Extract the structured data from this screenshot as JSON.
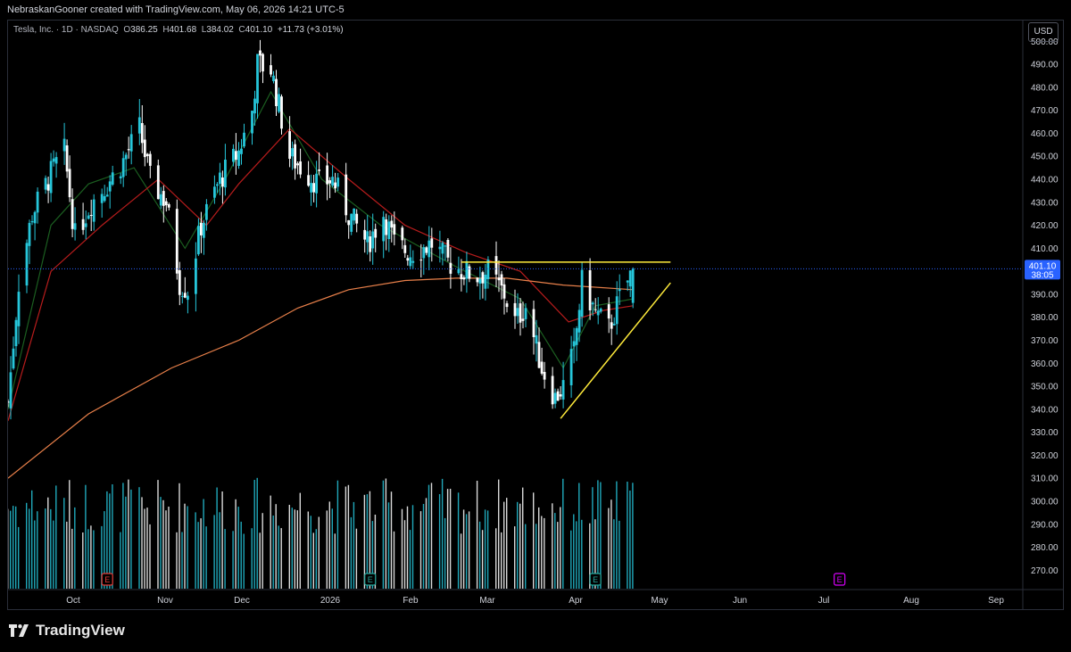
{
  "header": {
    "credit": "NebraskanGooner created with TradingView.com, May 06, 2026 14:21 UTC-5"
  },
  "legend": {
    "symbol": "Tesla, Inc. · 1D · NASDAQ",
    "open_label": "O",
    "open": "386.25",
    "high_label": "H",
    "high": "401.68",
    "low_label": "L",
    "low": "384.02",
    "close_label": "C",
    "close": "401.10",
    "change": "+11.73 (+3.01%)"
  },
  "currency": "USD",
  "price_tag": {
    "price": "401.10",
    "countdown": "38:05"
  },
  "footer": {
    "brand": "TradingView"
  },
  "colors": {
    "up": "#26c6da",
    "down": "#ffffff",
    "ma_fast": "#1b5e20",
    "ma_mid": "#b71c1c",
    "ma_slow": "#e9804a",
    "trendline": "#ffeb3b",
    "price_line": "#2962ff"
  },
  "chart_data": {
    "type": "candlestick",
    "symbol": "Tesla, Inc.",
    "interval": "1D",
    "exchange": "NASDAQ",
    "currency": "USD",
    "y_axis": {
      "ticks": [
        500,
        490,
        480,
        470,
        460,
        450,
        440,
        430,
        420,
        410,
        400,
        390,
        380,
        370,
        360,
        350,
        340,
        330,
        320,
        310,
        300,
        290,
        280,
        270
      ],
      "range": [
        262,
        504
      ]
    },
    "x_axis": {
      "ticks": [
        "Oct",
        "Nov",
        "Dec",
        "2026",
        "Feb",
        "Mar",
        "Apr",
        "May",
        "Jun",
        "Jul",
        "Aug",
        "Sep"
      ]
    },
    "close_path": [
      {
        "date": "2025-09-15",
        "close": 343
      },
      {
        "date": "2025-09-19",
        "close": 395
      },
      {
        "date": "2025-09-24",
        "close": 425
      },
      {
        "date": "2025-10-02",
        "close": 445
      },
      {
        "date": "2025-10-06",
        "close": 452
      },
      {
        "date": "2025-10-10",
        "close": 415
      },
      {
        "date": "2025-10-16",
        "close": 430
      },
      {
        "date": "2025-10-22",
        "close": 438
      },
      {
        "date": "2025-10-28",
        "close": 448
      },
      {
        "date": "2025-11-03",
        "close": 462
      },
      {
        "date": "2025-11-07",
        "close": 440
      },
      {
        "date": "2025-11-13",
        "close": 430
      },
      {
        "date": "2025-11-18",
        "close": 395
      },
      {
        "date": "2025-11-21",
        "close": 392
      },
      {
        "date": "2025-11-26",
        "close": 420
      },
      {
        "date": "2025-12-03",
        "close": 440
      },
      {
        "date": "2025-12-10",
        "close": 452
      },
      {
        "date": "2025-12-15",
        "close": 470
      },
      {
        "date": "2025-12-17",
        "close": 490
      },
      {
        "date": "2025-12-22",
        "close": 488
      },
      {
        "date": "2025-12-29",
        "close": 450
      },
      {
        "date": "2026-01-05",
        "close": 442
      },
      {
        "date": "2026-01-09",
        "close": 438
      },
      {
        "date": "2026-01-14",
        "close": 440
      },
      {
        "date": "2026-01-20",
        "close": 425
      },
      {
        "date": "2026-01-27",
        "close": 412
      },
      {
        "date": "2026-02-02",
        "close": 425
      },
      {
        "date": "2026-02-06",
        "close": 412
      },
      {
        "date": "2026-02-12",
        "close": 408
      },
      {
        "date": "2026-02-20",
        "close": 412
      },
      {
        "date": "2026-02-26",
        "close": 404
      },
      {
        "date": "2026-03-04",
        "close": 400
      },
      {
        "date": "2026-03-09",
        "close": 398
      },
      {
        "date": "2026-03-13",
        "close": 400
      },
      {
        "date": "2026-03-19",
        "close": 390
      },
      {
        "date": "2026-03-23",
        "close": 378
      },
      {
        "date": "2026-03-27",
        "close": 385
      },
      {
        "date": "2026-04-02",
        "close": 358
      },
      {
        "date": "2026-04-07",
        "close": 345
      },
      {
        "date": "2026-04-10",
        "close": 350
      },
      {
        "date": "2026-04-14",
        "close": 365
      },
      {
        "date": "2026-04-17",
        "close": 395
      },
      {
        "date": "2026-04-22",
        "close": 382
      },
      {
        "date": "2026-04-27",
        "close": 375
      },
      {
        "date": "2026-05-01",
        "close": 388
      },
      {
        "date": "2026-05-06",
        "close": 401.1
      }
    ],
    "moving_averages": [
      {
        "color": "#1b5e20",
        "points": [
          [
            "2025-09-15",
            340
          ],
          [
            "2025-10-01",
            420
          ],
          [
            "2025-10-15",
            438
          ],
          [
            "2025-11-01",
            445
          ],
          [
            "2025-11-20",
            410
          ],
          [
            "2025-12-05",
            440
          ],
          [
            "2025-12-22",
            478
          ],
          [
            "2026-01-10",
            440
          ],
          [
            "2026-02-01",
            420
          ],
          [
            "2026-03-01",
            402
          ],
          [
            "2026-03-25",
            388
          ],
          [
            "2026-04-10",
            358
          ],
          [
            "2026-04-22",
            385
          ],
          [
            "2026-05-06",
            388
          ]
        ]
      },
      {
        "color": "#b71c1c",
        "points": [
          [
            "2025-09-15",
            335
          ],
          [
            "2025-10-01",
            400
          ],
          [
            "2025-10-20",
            420
          ],
          [
            "2025-11-10",
            440
          ],
          [
            "2025-11-28",
            420
          ],
          [
            "2025-12-10",
            438
          ],
          [
            "2025-12-29",
            462
          ],
          [
            "2026-01-20",
            440
          ],
          [
            "2026-02-10",
            420
          ],
          [
            "2026-03-05",
            408
          ],
          [
            "2026-03-25",
            400
          ],
          [
            "2026-04-12",
            378
          ],
          [
            "2026-04-25",
            383
          ],
          [
            "2026-05-06",
            385
          ]
        ]
      },
      {
        "color": "#e9804a",
        "points": [
          [
            "2025-09-15",
            310
          ],
          [
            "2025-10-15",
            338
          ],
          [
            "2025-11-15",
            358
          ],
          [
            "2025-12-10",
            370
          ],
          [
            "2026-01-01",
            384
          ],
          [
            "2026-01-20",
            392
          ],
          [
            "2026-02-10",
            396
          ],
          [
            "2026-03-01",
            397
          ],
          [
            "2026-03-20",
            397
          ],
          [
            "2026-04-10",
            394
          ],
          [
            "2026-05-06",
            392
          ]
        ]
      }
    ],
    "trendlines": [
      {
        "from": [
          "2026-03-03",
          404
        ],
        "to": [
          "2026-05-20",
          404
        ]
      },
      {
        "from": [
          "2026-04-09",
          336
        ],
        "to": [
          "2026-05-20",
          395
        ]
      }
    ],
    "earnings_markers": [
      {
        "date": "2025-10-22",
        "label": "E"
      },
      {
        "date": "2026-01-28",
        "label": "E"
      },
      {
        "date": "2026-04-22",
        "label": "E"
      },
      {
        "date": "2026-07-22",
        "label": "E"
      }
    ],
    "last": {
      "open": 386.25,
      "high": 401.68,
      "low": 384.02,
      "close": 401.1,
      "change": 11.73,
      "change_pct": 3.01
    }
  }
}
